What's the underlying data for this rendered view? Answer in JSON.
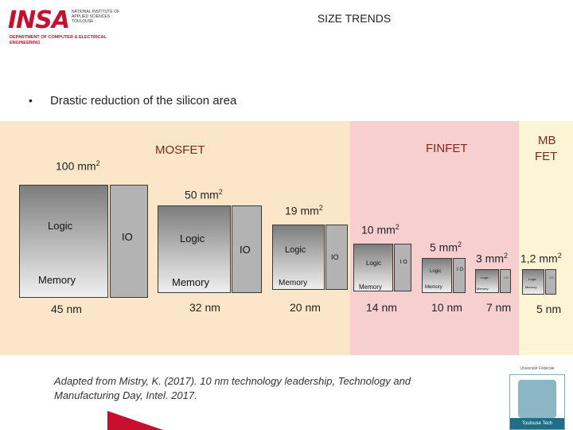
{
  "header": {
    "logo": "INSA",
    "logo_sub": "NATIONAL INSTITUTE OF APPLIED SCIENCES TOULOUSE",
    "department": "DEPARTMENT OF COMPUTER & ELECTRICAL ENGINEERING",
    "title": "SIZE TRENDS"
  },
  "bullet": {
    "marker": "•",
    "text": "Drastic reduction of the silicon area"
  },
  "sections": {
    "mosfet": "MOSFET",
    "finfet": "FINFET",
    "mbfet_1": "MB",
    "mbfet_2": "FET"
  },
  "colors": {
    "mosfet_bg": "#fbe6c9",
    "finfet_bg": "#f7cfcf",
    "mbfet_bg": "#fbf5d6",
    "accent": "#c8102e"
  },
  "nodes": [
    {
      "area": "100 mm",
      "node": "45 nm",
      "logic": "Logic",
      "io": "IO",
      "memory": "Memory"
    },
    {
      "area": "50 mm",
      "node": "32 nm",
      "logic": "Logic",
      "io": "IO",
      "memory": "Memory"
    },
    {
      "area": "19 mm",
      "node": "20 nm",
      "logic": "Logic",
      "io": "IO",
      "memory": "Memory"
    },
    {
      "area": "10 mm",
      "node": "14 nm",
      "logic": "Logic",
      "io": "I O",
      "memory": "Memory"
    },
    {
      "area": "5 mm",
      "node": "10 nm",
      "logic": "Logic",
      "io": "I O",
      "memory": "Memory"
    },
    {
      "area": "3 mm",
      "node": "7 nm",
      "logic": "Logic",
      "io": "I O",
      "memory": "Memory"
    },
    {
      "area": "1,2 mm",
      "node": "5 nm",
      "logic": "Logic",
      "io": "I O",
      "memory": "Memory"
    }
  ],
  "area_exponent": "2",
  "credit": "Adapted from Mistry, K. (2017). 10 nm technology leadership, Technology and Manufacturing Day, Intel. 2017.",
  "badge": {
    "top": "Université Fédérale",
    "foot": "Toulouse Tech"
  }
}
